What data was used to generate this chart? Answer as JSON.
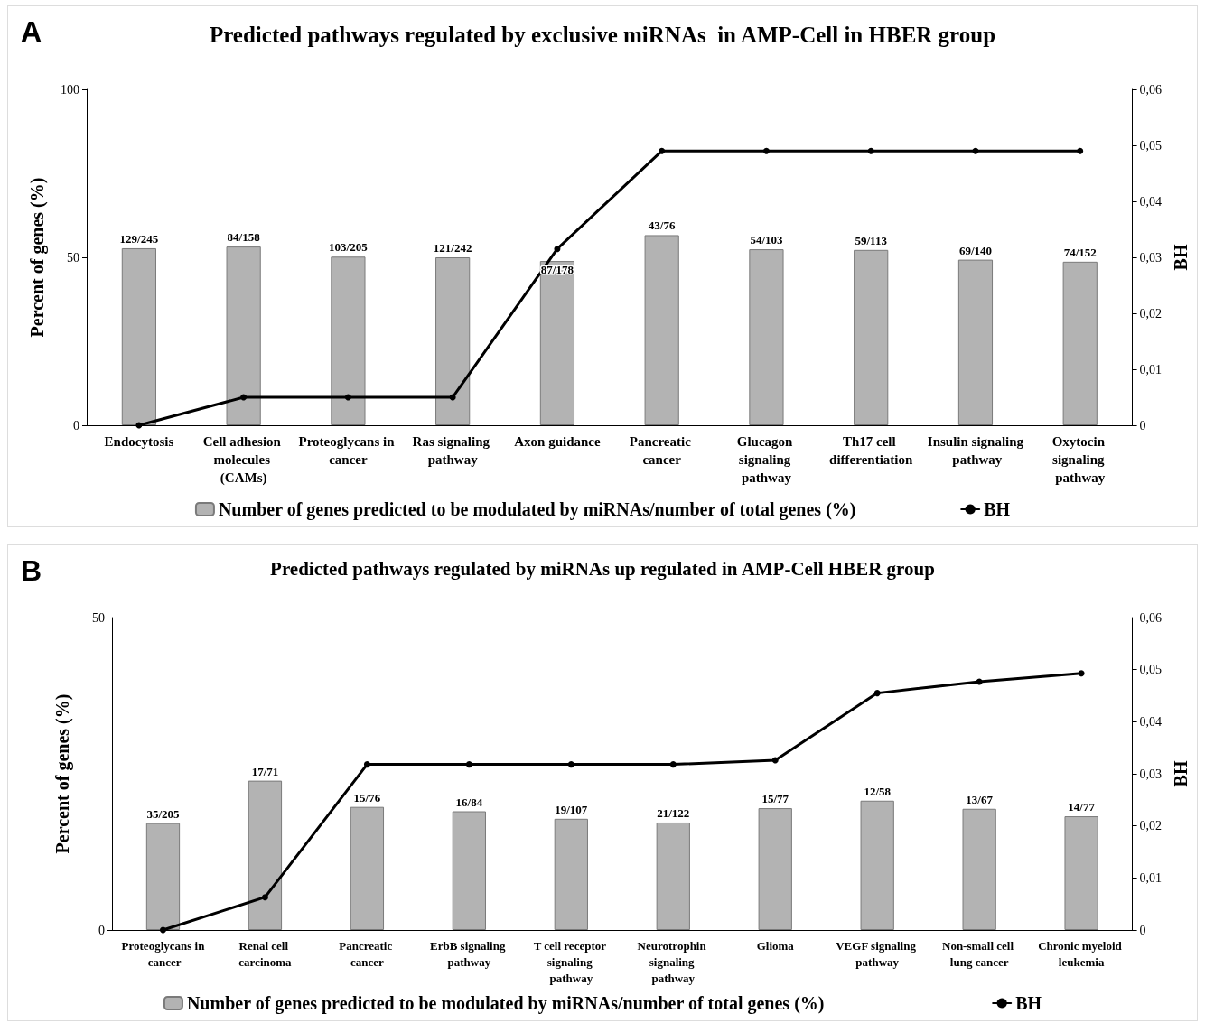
{
  "chart_data": [
    {
      "type": "bar",
      "title": "Predicted pathways regulated by exclusive miRNAs  in AMP-Cell in HBER group",
      "ylabel": "Percent of genes (%)",
      "y2label": "BH",
      "annotations": [
        "A"
      ],
      "categories": [
        "Endocytosis",
        "Cell adhesion molecules (CAMs)",
        "Proteoglycans in cancer",
        "Ras signaling pathway",
        "Axon guidance",
        "Pancreatic cancer",
        "Glucagon signaling pathway",
        "Th17 cell differentiation",
        "Insulin signaling pathway",
        "Oxytocin signaling pathway"
      ],
      "series": [
        {
          "name": "Number of genes predicted to be modulated by miRNAs/number of total genes (%)",
          "type": "bar",
          "color": "#b3b3b3",
          "values": [
            52.7,
            53.2,
            50.2,
            50.0,
            48.9,
            56.6,
            52.4,
            52.2,
            49.3,
            48.7
          ],
          "value_labels": [
            "129/245",
            "84/158",
            "103/205",
            "121/242",
            "87/178",
            "43/76",
            "54/103",
            "59/113",
            "69/140",
            "74/152"
          ]
        },
        {
          "name": "BH",
          "type": "line",
          "axis": "y2",
          "color": "#000000",
          "values": [
            0,
            0.005,
            0.005,
            0.005,
            0.0315,
            0.049,
            0.049,
            0.049,
            0.049,
            0.049
          ]
        }
      ],
      "ylim": [
        0,
        100
      ],
      "yticks": [
        0,
        50,
        100
      ],
      "y2lim": [
        0,
        0.06
      ],
      "y2ticks": [
        {
          "value": 0,
          "label": "0"
        },
        {
          "value": 0.01,
          "label": "0,01"
        },
        {
          "value": 0.02,
          "label": "0,02"
        },
        {
          "value": 0.03,
          "label": "0,03"
        },
        {
          "value": 0.04,
          "label": "0,04"
        },
        {
          "value": 0.05,
          "label": "0,05"
        },
        {
          "value": 0.06,
          "label": "0,06"
        }
      ],
      "grid": false,
      "legend": "bottom",
      "marker": "circle",
      "line_style": "solid"
    },
    {
      "type": "bar",
      "title": "Predicted pathways regulated by miRNAs up regulated in AMP-Cell HBER group",
      "ylabel": "Percent of genes (%)",
      "y2label": "BH",
      "annotations": [
        "B"
      ],
      "categories": [
        "Proteoglycans in cancer",
        "Renal cell carcinoma",
        "Pancreatic cancer",
        "ErbB signaling pathway",
        "T cell receptor signaling pathway",
        "Neurotrophin signaling pathway",
        "Glioma",
        "VEGF signaling pathway",
        "Non-small cell lung cancer",
        "Chronic myeloid leukemia"
      ],
      "series": [
        {
          "name": "Number of genes predicted to be modulated by miRNAs/number of total genes (%)",
          "type": "bar",
          "color": "#b3b3b3",
          "values": [
            17.1,
            23.9,
            19.7,
            19.0,
            17.8,
            17.2,
            19.5,
            20.7,
            19.4,
            18.2
          ],
          "value_labels": [
            "35/205",
            "17/71",
            "15/76",
            "16/84",
            "19/107",
            "21/122",
            "15/77",
            "12/58",
            "13/67",
            "14/77"
          ]
        },
        {
          "name": "BH",
          "type": "line",
          "axis": "y2",
          "color": "#000000",
          "values": [
            0,
            0.0063,
            0.0318,
            0.0318,
            0.0318,
            0.0318,
            0.0326,
            0.0455,
            0.0477,
            0.0493
          ]
        }
      ],
      "ylim": [
        0,
        50
      ],
      "yticks": [
        0,
        50
      ],
      "y2lim": [
        0,
        0.06
      ],
      "y2ticks": [
        {
          "value": 0,
          "label": "0"
        },
        {
          "value": 0.01,
          "label": "0,01"
        },
        {
          "value": 0.02,
          "label": "0,02"
        },
        {
          "value": 0.03,
          "label": "0,03"
        },
        {
          "value": 0.04,
          "label": "0,04"
        },
        {
          "value": 0.05,
          "label": "0,05"
        },
        {
          "value": 0.06,
          "label": "0,06"
        }
      ],
      "grid": false,
      "legend": "bottom",
      "marker": "circle",
      "line_style": "solid"
    }
  ]
}
